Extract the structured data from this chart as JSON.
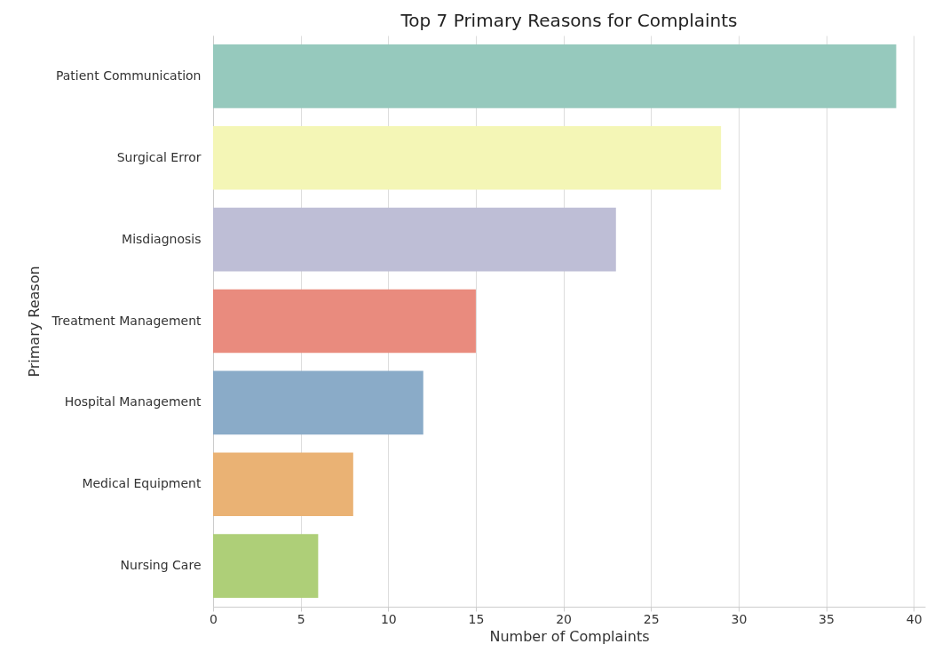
{
  "chart_data": {
    "type": "bar",
    "orientation": "horizontal",
    "title": "Top 7 Primary Reasons for Complaints",
    "xlabel": "Number of Complaints",
    "ylabel": "Primary Reason",
    "categories": [
      "Patient Communication",
      "Surgical Error",
      "Misdiagnosis",
      "Treatment Management",
      "Hospital Management",
      "Medical Equipment",
      "Nursing Care"
    ],
    "values": [
      39,
      29,
      23,
      15,
      12,
      8,
      6
    ],
    "colors": [
      "#96c9bd",
      "#f4f6b6",
      "#bebed6",
      "#e98b7e",
      "#8aabc8",
      "#eab274",
      "#aecf78"
    ],
    "xlim": [
      0,
      40.65
    ],
    "xticks": [
      0,
      5,
      10,
      15,
      20,
      25,
      30,
      35,
      40
    ],
    "grid": "x",
    "legend": false
  }
}
